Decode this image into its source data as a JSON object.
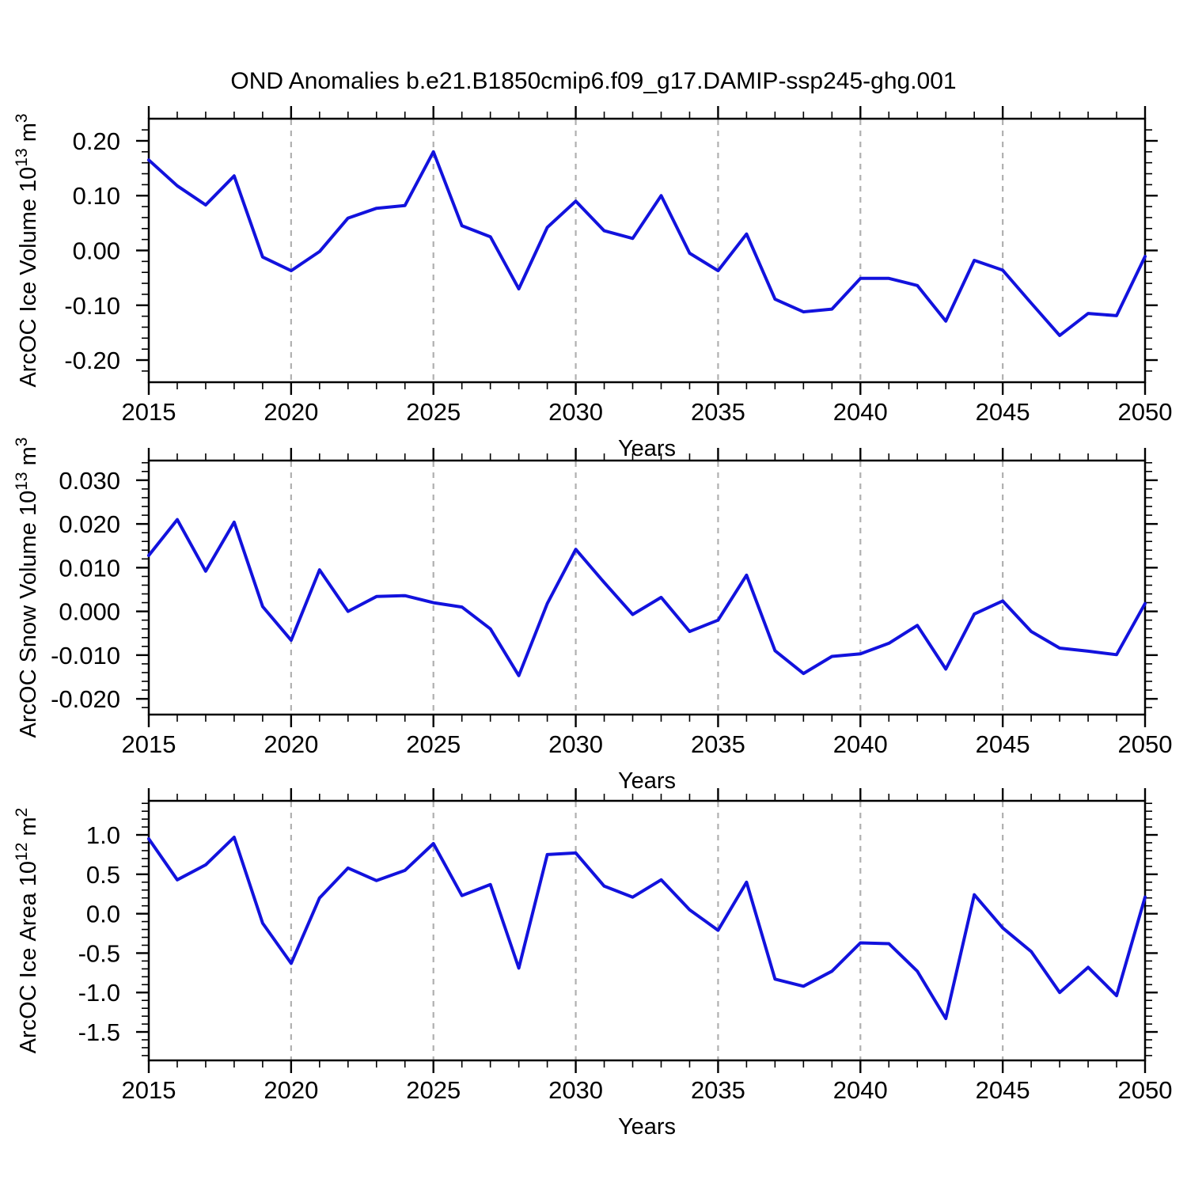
{
  "header": {
    "title": "OND Anomalies b.e21.B1850cmip6.f09_g17.DAMIP-ssp245-ghg.001"
  },
  "style": {
    "line_color": "#1212dd",
    "grid_color": "#b0b0b0",
    "axis_color": "#000000",
    "background": "#ffffff"
  },
  "chart_data": [
    {
      "type": "line",
      "name": "arcoc-ice-volume",
      "ylabel_text": "ArcOC Ice Volume 10^13 m^3",
      "ylabel_segments": [
        {
          "t": "ArcOC Ice Volume 10"
        },
        {
          "t": "13",
          "sup": true
        },
        {
          "t": " m"
        },
        {
          "t": "3",
          "sup": true
        }
      ],
      "xlabel": "Years",
      "x": [
        2015,
        2016,
        2017,
        2018,
        2019,
        2020,
        2021,
        2022,
        2023,
        2024,
        2025,
        2026,
        2027,
        2028,
        2029,
        2030,
        2031,
        2032,
        2033,
        2034,
        2035,
        2036,
        2037,
        2038,
        2039,
        2040,
        2041,
        2042,
        2043,
        2044,
        2045,
        2046,
        2047,
        2048,
        2049,
        2050
      ],
      "values": [
        0.165,
        0.118,
        0.083,
        0.136,
        -0.012,
        -0.037,
        -0.002,
        0.059,
        0.077,
        0.082,
        0.18,
        0.045,
        0.025,
        -0.07,
        0.042,
        0.09,
        0.036,
        0.022,
        0.1,
        -0.005,
        -0.037,
        0.03,
        -0.089,
        -0.112,
        -0.107,
        -0.051,
        -0.051,
        -0.064,
        -0.129,
        -0.018,
        -0.036,
        -0.096,
        -0.155,
        -0.115,
        -0.119,
        -0.011
      ],
      "ylim": [
        -0.2404,
        0.2404
      ],
      "yticks": [
        {
          "v": 0.2,
          "label": "0.20"
        },
        {
          "v": 0.1,
          "label": "0.10"
        },
        {
          "v": 0.0,
          "label": "0.00"
        },
        {
          "v": -0.1,
          "label": "-0.10"
        },
        {
          "v": -0.2,
          "label": "-0.20"
        }
      ],
      "y_minor_step": 0.02,
      "xlim": [
        2015,
        2050
      ],
      "xticks": [
        2015,
        2020,
        2025,
        2030,
        2035,
        2040,
        2045,
        2050
      ],
      "x_minor_step": 1,
      "grid_years": [
        2020,
        2025,
        2030,
        2035,
        2040,
        2045
      ],
      "grid_on": true
    },
    {
      "type": "line",
      "name": "arcoc-snow-volume",
      "ylabel_text": "ArcOC Snow Volume 10^13 m^3",
      "ylabel_segments": [
        {
          "t": "ArcOC Snow Volume 10"
        },
        {
          "t": "13",
          "sup": true
        },
        {
          "t": " m"
        },
        {
          "t": "3",
          "sup": true
        }
      ],
      "xlabel": "Years",
      "x": [
        2015,
        2016,
        2017,
        2018,
        2019,
        2020,
        2021,
        2022,
        2023,
        2024,
        2025,
        2026,
        2027,
        2028,
        2029,
        2030,
        2031,
        2032,
        2033,
        2034,
        2035,
        2036,
        2037,
        2038,
        2039,
        2040,
        2041,
        2042,
        2043,
        2044,
        2045,
        2046,
        2047,
        2048,
        2049,
        2050
      ],
      "values": [
        0.0128,
        0.021,
        0.0092,
        0.0204,
        0.0011,
        -0.0066,
        0.0095,
        0.0,
        0.0034,
        0.0036,
        0.002,
        0.001,
        -0.004,
        -0.0147,
        0.0018,
        0.0142,
        0.0066,
        -0.0007,
        0.0032,
        -0.0046,
        -0.002,
        0.0083,
        -0.009,
        -0.0142,
        -0.0103,
        -0.0097,
        -0.0073,
        -0.0032,
        -0.0132,
        -0.0006,
        0.0024,
        -0.0046,
        -0.0084,
        -0.0091,
        -0.0099,
        0.0018
      ],
      "ylim": [
        -0.0236,
        0.0345
      ],
      "yticks": [
        {
          "v": 0.03,
          "label": "0.030"
        },
        {
          "v": 0.02,
          "label": "0.020"
        },
        {
          "v": 0.01,
          "label": "0.010"
        },
        {
          "v": 0.0,
          "label": "0.000"
        },
        {
          "v": -0.01,
          "label": "-0.010"
        },
        {
          "v": -0.02,
          "label": "-0.020"
        }
      ],
      "y_minor_step": 0.002,
      "xlim": [
        2015,
        2050
      ],
      "xticks": [
        2015,
        2020,
        2025,
        2030,
        2035,
        2040,
        2045,
        2050
      ],
      "x_minor_step": 1,
      "grid_years": [
        2020,
        2025,
        2030,
        2035,
        2040,
        2045
      ],
      "grid_on": true
    },
    {
      "type": "line",
      "name": "arcoc-ice-area",
      "ylabel_text": "ArcOC Ice Area 10^12 m^2",
      "ylabel_segments": [
        {
          "t": "ArcOC Ice Area 10"
        },
        {
          "t": "12",
          "sup": true
        },
        {
          "t": " m"
        },
        {
          "t": "2",
          "sup": true
        }
      ],
      "xlabel": "Years",
      "x": [
        2015,
        2016,
        2017,
        2018,
        2019,
        2020,
        2021,
        2022,
        2023,
        2024,
        2025,
        2026,
        2027,
        2028,
        2029,
        2030,
        2031,
        2032,
        2033,
        2034,
        2035,
        2036,
        2037,
        2038,
        2039,
        2040,
        2041,
        2042,
        2043,
        2044,
        2045,
        2046,
        2047,
        2048,
        2049,
        2050
      ],
      "values": [
        0.95,
        0.43,
        0.62,
        0.97,
        -0.12,
        -0.63,
        0.2,
        0.58,
        0.42,
        0.55,
        0.89,
        0.23,
        0.37,
        -0.69,
        0.75,
        0.77,
        0.35,
        0.21,
        0.43,
        0.05,
        -0.21,
        0.4,
        -0.83,
        -0.92,
        -0.73,
        -0.37,
        -0.38,
        -0.73,
        -1.33,
        0.24,
        -0.18,
        -0.48,
        -1.0,
        -0.68,
        -1.04,
        0.21
      ],
      "ylim": [
        -1.861,
        1.432
      ],
      "yticks": [
        {
          "v": 1.0,
          "label": "1.0"
        },
        {
          "v": 0.5,
          "label": "0.5"
        },
        {
          "v": 0.0,
          "label": "0.0"
        },
        {
          "v": -0.5,
          "label": "-0.5"
        },
        {
          "v": -1.0,
          "label": "-1.0"
        },
        {
          "v": -1.5,
          "label": "-1.5"
        }
      ],
      "y_minor_step": 0.1,
      "xlim": [
        2015,
        2050
      ],
      "xticks": [
        2015,
        2020,
        2025,
        2030,
        2035,
        2040,
        2045,
        2050
      ],
      "x_minor_step": 1,
      "grid_years": [
        2020,
        2025,
        2030,
        2035,
        2040,
        2045
      ],
      "grid_on": true
    }
  ]
}
